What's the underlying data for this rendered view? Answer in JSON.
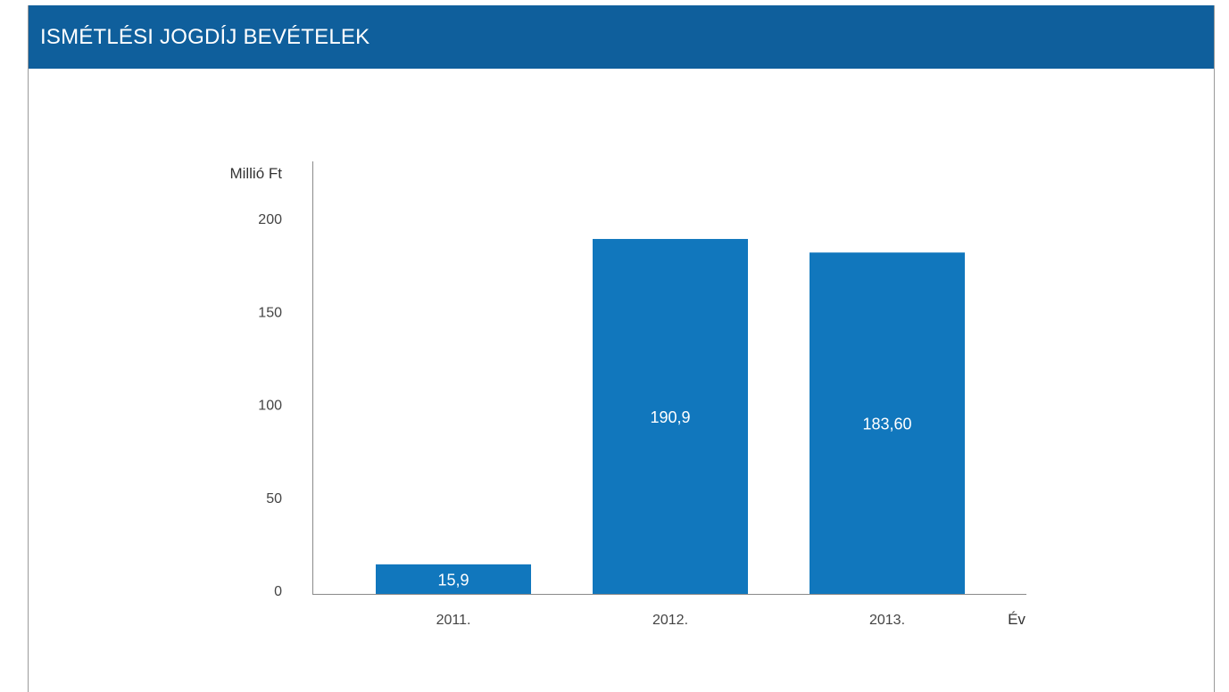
{
  "header": {
    "title": "ISMÉTLÉSI JOGDÍJ BEVÉTELEK"
  },
  "colors": {
    "header_bg": "#0f5f9c",
    "bar": "#1177bd",
    "axis": "#8a8a8a"
  },
  "chart_data": {
    "type": "bar",
    "categories": [
      "2011.",
      "2012.",
      "2013."
    ],
    "values": [
      15.9,
      190.9,
      183.6
    ],
    "value_labels": [
      "15,9",
      "190,9",
      "183,60"
    ],
    "ylabel": "Millió Ft",
    "xlabel": "Év",
    "ylim": [
      0,
      200
    ],
    "yticks": [
      0,
      50,
      100,
      150,
      200
    ],
    "grid": false,
    "legend": "none"
  }
}
